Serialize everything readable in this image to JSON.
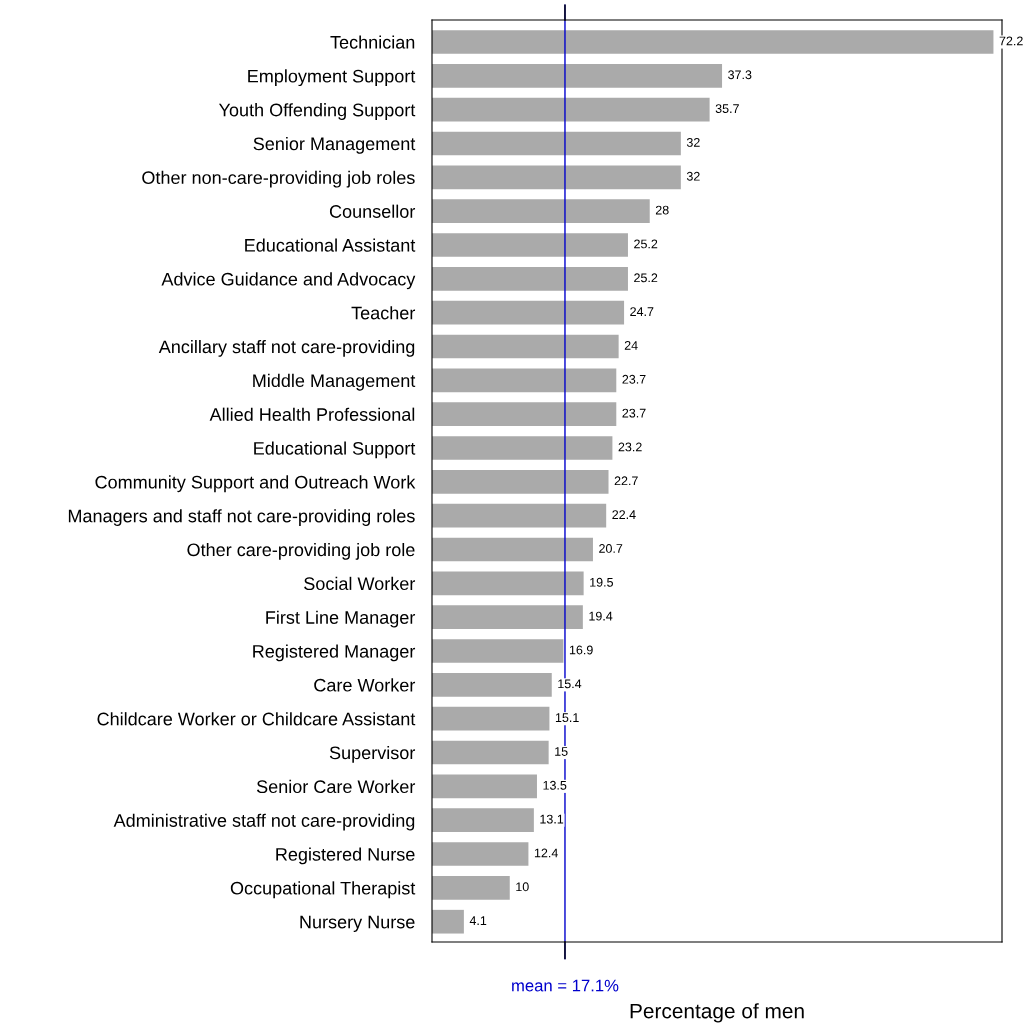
{
  "chart_data": {
    "type": "bar",
    "orientation": "horizontal",
    "xlabel": "Percentage of men",
    "categories": [
      "Technician",
      "Employment Support",
      "Youth Offending Support",
      "Senior Management",
      "Other non-care-providing job roles",
      "Counsellor",
      "Educational Assistant",
      "Advice Guidance and Advocacy",
      "Teacher",
      "Ancillary staff not care-providing",
      "Middle Management",
      "Allied Health Professional",
      "Educational Support",
      "Community Support and Outreach Work",
      "Managers and staff not care-providing roles",
      "Other care-providing job role",
      "Social Worker",
      "First Line Manager",
      "Registered Manager",
      "Care Worker",
      "Childcare Worker or Childcare Assistant",
      "Supervisor",
      "Senior Care Worker",
      "Administrative staff not care-providing",
      "Registered Nurse",
      "Occupational Therapist",
      "Nursery Nurse"
    ],
    "values": [
      72.2,
      37.3,
      35.7,
      32,
      32,
      28,
      25.2,
      25.2,
      24.7,
      24,
      23.7,
      23.7,
      23.2,
      22.7,
      22.4,
      20.7,
      19.5,
      19.4,
      16.9,
      15.4,
      15.1,
      15,
      13.5,
      13.1,
      12.4,
      10,
      4.1
    ],
    "color": "#aaaaaa",
    "data_labels": true,
    "xlim": [
      0,
      73.3
    ],
    "tick_labels": "y",
    "grid": false,
    "legend": false,
    "ref_lines": [
      {
        "axis": "x",
        "value": 17.1,
        "label": "mean = 17.1%",
        "color": "#0000cc"
      }
    ]
  }
}
